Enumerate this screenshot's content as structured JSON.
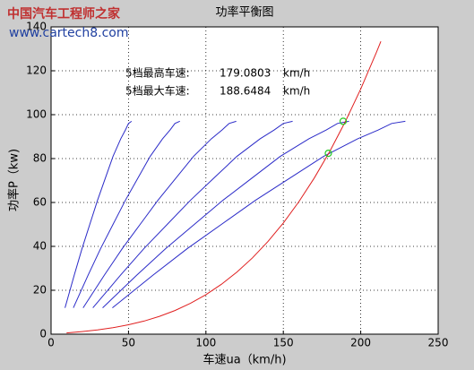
{
  "watermark": {
    "title": "中国汽车工程师之家",
    "url": "www.cartech8.com"
  },
  "chart_data": {
    "type": "line",
    "title": "功率平衡图",
    "x_label": "车速ua（km/h)",
    "y_label": "功率P（kw)",
    "xlim": [
      0,
      250
    ],
    "xticks": [
      0,
      50,
      100,
      150,
      200,
      250
    ],
    "ylim": [
      0,
      140
    ],
    "yticks": [
      0,
      20,
      40,
      60,
      80,
      100,
      120,
      140
    ],
    "grid": true,
    "annotations": [
      {
        "label": "5档最高车速:",
        "value": "179.0803",
        "unit": "km/h"
      },
      {
        "label": "5档最大车速:",
        "value": "188.6484",
        "unit": "km/h"
      }
    ],
    "series": [
      {
        "color": "#2b2bc8",
        "x": [
          9,
          15,
          20,
          25,
          30,
          35,
          40,
          45,
          48,
          50,
          52
        ],
        "values": [
          12,
          27,
          39,
          50,
          61,
          71,
          81,
          89,
          93,
          96,
          97
        ]
      },
      {
        "color": "#2b2bc8",
        "x": [
          14.4,
          24,
          32,
          40,
          48,
          56,
          64,
          72,
          76.8,
          80,
          83.2
        ],
        "values": [
          12,
          27,
          39,
          50,
          61,
          71,
          81,
          89,
          93,
          96,
          97
        ]
      },
      {
        "color": "#2b2bc8",
        "x": [
          20.7,
          34.5,
          46,
          57.5,
          69,
          80.5,
          92,
          103.5,
          110.4,
          115,
          119.6
        ],
        "values": [
          12,
          27,
          39,
          50,
          61,
          71,
          81,
          89,
          93,
          96,
          97
        ]
      },
      {
        "color": "#2b2bc8",
        "x": [
          27,
          45,
          60,
          75,
          90,
          105,
          120,
          135,
          144,
          150,
          156
        ],
        "values": [
          12,
          27,
          39,
          50,
          61,
          71,
          81,
          89,
          93,
          96,
          97
        ]
      },
      {
        "color": "#2b2bc8",
        "x": [
          33.3,
          55.5,
          74,
          92.5,
          111,
          129.5,
          148,
          166.5,
          177.6,
          185,
          192.4
        ],
        "values": [
          12,
          27,
          39,
          50,
          61,
          71,
          81,
          89,
          93,
          96,
          97
        ]
      },
      {
        "color": "#2b2bc8",
        "x": [
          39.6,
          66,
          88,
          110,
          132,
          154,
          176,
          198,
          211.2,
          220,
          228.8
        ],
        "values": [
          12,
          27,
          39,
          50,
          61,
          71,
          81,
          89,
          93,
          96,
          97
        ]
      },
      {
        "color": "#e02020",
        "x": [
          10,
          20,
          30,
          40,
          50,
          60,
          70,
          80,
          90,
          100,
          110,
          120,
          130,
          140,
          150,
          160,
          170,
          180,
          190,
          200,
          210,
          213
        ],
        "values": [
          0.55,
          1.18,
          1.95,
          2.96,
          4.27,
          5.95,
          8.1,
          10.77,
          14.04,
          18,
          22.72,
          28.26,
          34.72,
          42.16,
          50.66,
          60.3,
          71.15,
          83.28,
          96.78,
          111.72,
          128.17,
          133.4
        ]
      }
    ],
    "markers": {
      "color": "#22cc22",
      "x": [
        179.0803,
        188.6484
      ],
      "values": [
        82.4,
        97
      ]
    }
  }
}
